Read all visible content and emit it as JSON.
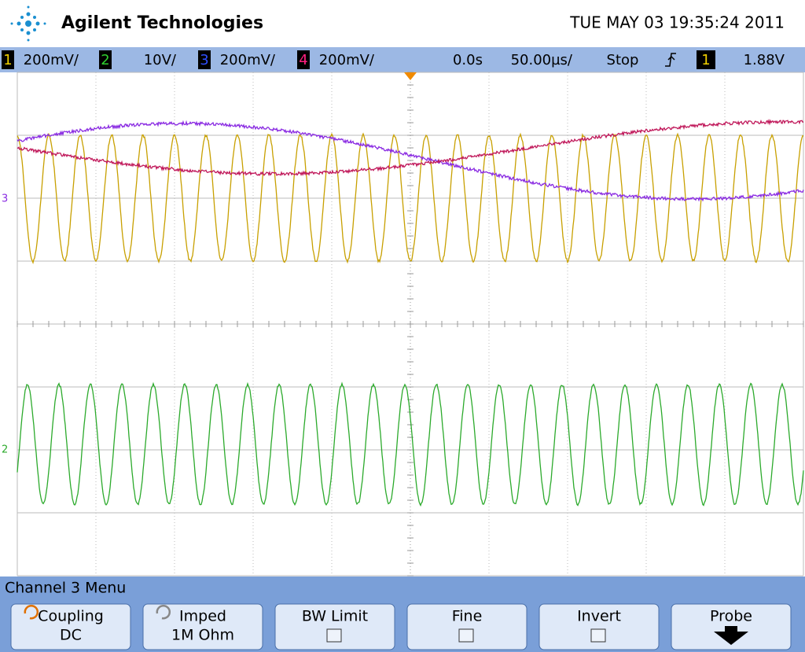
{
  "header": {
    "brand": "Agilent Technologies",
    "datetime": "TUE MAY 03 19:35:24 2011"
  },
  "status": {
    "channels": [
      {
        "number": "1",
        "scale": "200mV/"
      },
      {
        "number": "2",
        "scale": "10V/"
      },
      {
        "number": "3",
        "scale": "200mV/"
      },
      {
        "number": "4",
        "scale": "200mV/"
      }
    ],
    "delay": "0.0s",
    "timebase": "50.00µs/",
    "run_state": "Stop",
    "trigger_channel": "1",
    "trigger_level": "1.88V"
  },
  "markers": {
    "channel_3": "3",
    "channel_2": "2"
  },
  "menu": {
    "title": "Channel 3  Menu",
    "buttons": [
      {
        "label": "Coupling",
        "value": "DC"
      },
      {
        "label": "Imped",
        "value": "1M Ohm"
      },
      {
        "label": "BW Limit"
      },
      {
        "label": "Fine"
      },
      {
        "label": "Invert"
      },
      {
        "label": "Probe"
      }
    ]
  }
}
